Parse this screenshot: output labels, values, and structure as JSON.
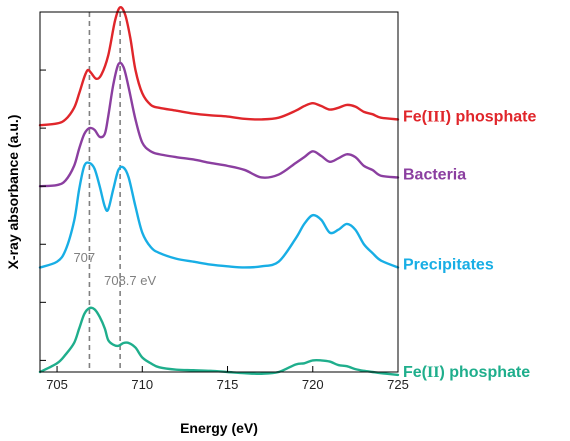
{
  "chart_data": {
    "type": "line",
    "title": "",
    "xlabel": "Energy (eV)",
    "ylabel": "X-ray absorbance (a.u.)",
    "xlim": [
      704,
      725
    ],
    "ylim": [
      0,
      6.2
    ],
    "x_ticks": [
      705,
      710,
      715,
      720,
      725
    ],
    "x_tick_labels": [
      "705",
      "710",
      "715",
      "720",
      "725"
    ],
    "y_tick_values": [
      0.2,
      1.2,
      2.2,
      3.2,
      4.2,
      5.2
    ],
    "grid": false,
    "legend": "labels at right end of each curve",
    "reference_lines": [
      {
        "x": 706.9,
        "label": "707",
        "color": "#808080"
      },
      {
        "x": 708.7,
        "label": "708.7 eV",
        "color": "#808080"
      }
    ],
    "series": [
      {
        "name": "Fe(III) phosphate",
        "color": "#e0262b",
        "label_parts": [
          {
            "text": "Fe(",
            "serif": false
          },
          {
            "text": "III",
            "serif": true
          },
          {
            "text": ") phosphate",
            "serif": false
          }
        ],
        "x": [
          704,
          705,
          705.5,
          706,
          706.3,
          706.6,
          706.8,
          707.0,
          707.3,
          707.6,
          708.0,
          708.4,
          708.7,
          709.0,
          709.3,
          709.6,
          710.0,
          710.5,
          711,
          712,
          713,
          714,
          715,
          716,
          717,
          718,
          719,
          719.5,
          720,
          720.5,
          721,
          721.5,
          722,
          722.5,
          723,
          723.5,
          724,
          725
        ],
        "y": [
          4.25,
          4.28,
          4.35,
          4.55,
          4.8,
          5.08,
          5.2,
          5.15,
          5.05,
          5.12,
          5.45,
          6.05,
          6.28,
          6.15,
          5.75,
          5.2,
          4.8,
          4.6,
          4.55,
          4.5,
          4.45,
          4.42,
          4.4,
          4.36,
          4.35,
          4.38,
          4.5,
          4.58,
          4.63,
          4.58,
          4.52,
          4.55,
          4.6,
          4.57,
          4.48,
          4.44,
          4.38,
          4.35
        ]
      },
      {
        "name": "Bacteria",
        "color": "#8b3fa0",
        "label_parts": [
          {
            "text": "Bacteria",
            "serif": false
          }
        ],
        "x": [
          704,
          705,
          705.5,
          706,
          706.3,
          706.6,
          706.9,
          707.2,
          707.5,
          707.8,
          708.0,
          708.3,
          708.6,
          708.9,
          709.2,
          709.6,
          710.0,
          710.5,
          711,
          712,
          713,
          714,
          715,
          716,
          717,
          718,
          719,
          719.5,
          720,
          720.5,
          721,
          721.5,
          722,
          722.5,
          723,
          723.5,
          724,
          725
        ],
        "y": [
          3.2,
          3.22,
          3.3,
          3.55,
          3.85,
          4.1,
          4.2,
          4.17,
          4.05,
          4.1,
          4.4,
          4.95,
          5.3,
          5.25,
          4.9,
          4.35,
          3.95,
          3.8,
          3.75,
          3.7,
          3.66,
          3.6,
          3.55,
          3.48,
          3.35,
          3.4,
          3.6,
          3.7,
          3.8,
          3.72,
          3.62,
          3.68,
          3.75,
          3.7,
          3.55,
          3.48,
          3.38,
          3.35
        ]
      },
      {
        "name": "Precipitates",
        "color": "#18aee5",
        "label_parts": [
          {
            "text": "Precipitates",
            "serif": false
          }
        ],
        "x": [
          704,
          705,
          705.5,
          706,
          706.3,
          706.6,
          706.9,
          707.2,
          707.5,
          707.8,
          708.0,
          708.3,
          708.6,
          708.9,
          709.2,
          709.6,
          710.0,
          710.5,
          711,
          712,
          713,
          714,
          715,
          716,
          717,
          718,
          719,
          719.5,
          720,
          720.5,
          721,
          721.5,
          722,
          722.5,
          723,
          723.5,
          724,
          725
        ],
        "y": [
          1.8,
          1.9,
          2.1,
          2.6,
          3.15,
          3.55,
          3.6,
          3.5,
          3.2,
          2.85,
          2.8,
          3.15,
          3.48,
          3.52,
          3.35,
          2.85,
          2.4,
          2.15,
          2.05,
          1.95,
          1.9,
          1.85,
          1.82,
          1.8,
          1.82,
          1.9,
          2.3,
          2.55,
          2.7,
          2.62,
          2.4,
          2.45,
          2.55,
          2.45,
          2.2,
          2.05,
          1.92,
          1.8
        ]
      },
      {
        "name": "Fe(II) phosphate",
        "color": "#1fae8c",
        "label_parts": [
          {
            "text": "Fe(",
            "serif": false
          },
          {
            "text": "II",
            "serif": true
          },
          {
            "text": ") phosphate",
            "serif": false
          }
        ],
        "x": [
          704,
          705,
          705.5,
          706,
          706.3,
          706.6,
          706.9,
          707.2,
          707.5,
          707.8,
          708.0,
          708.3,
          708.6,
          708.9,
          709.2,
          709.6,
          710.0,
          710.5,
          711,
          712,
          713,
          714,
          715,
          716,
          717,
          718,
          719,
          719.5,
          720,
          720.5,
          721,
          721.5,
          722,
          722.5,
          723,
          723.5,
          724,
          725
        ],
        "y": [
          0.0,
          0.15,
          0.3,
          0.5,
          0.75,
          1.0,
          1.1,
          1.08,
          0.95,
          0.75,
          0.55,
          0.47,
          0.45,
          0.5,
          0.5,
          0.42,
          0.25,
          0.15,
          0.08,
          0.04,
          0.03,
          0.02,
          0.0,
          -0.02,
          -0.03,
          0.0,
          0.13,
          0.15,
          0.2,
          0.2,
          0.18,
          0.12,
          0.1,
          0.05,
          0.02,
          0.0,
          -0.02,
          -0.05
        ]
      }
    ]
  }
}
